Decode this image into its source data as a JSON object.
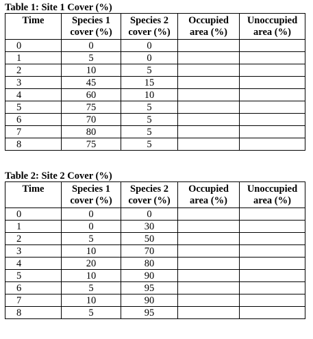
{
  "table1": {
    "caption": "Table 1: Site 1 Cover (%)",
    "headers": [
      [
        "Time",
        ""
      ],
      [
        "Species 1",
        "cover (%)"
      ],
      [
        "Species 2",
        "cover (%)"
      ],
      [
        "Occupied",
        "area (%)"
      ],
      [
        "Unoccupied",
        "area (%)"
      ]
    ],
    "rows": [
      [
        "0",
        "0",
        "0",
        "",
        ""
      ],
      [
        "1",
        "5",
        "0",
        "",
        ""
      ],
      [
        "2",
        "10",
        "5",
        "",
        ""
      ],
      [
        "3",
        "45",
        "15",
        "",
        ""
      ],
      [
        "4",
        "60",
        "10",
        "",
        ""
      ],
      [
        "5",
        "75",
        "5",
        "",
        ""
      ],
      [
        "6",
        "70",
        "5",
        "",
        ""
      ],
      [
        "7",
        "80",
        "5",
        "",
        ""
      ],
      [
        "8",
        "75",
        "5",
        "",
        ""
      ]
    ]
  },
  "table2": {
    "caption": "Table 2: Site 2 Cover (%)",
    "headers": [
      [
        "Time",
        ""
      ],
      [
        "Species 1",
        "cover (%)"
      ],
      [
        "Species 2",
        "cover (%)"
      ],
      [
        "Occupied",
        "area (%)"
      ],
      [
        "Unoccupied",
        "area (%)"
      ]
    ],
    "rows": [
      [
        "0",
        "0",
        "0",
        "",
        ""
      ],
      [
        "1",
        "0",
        "30",
        "",
        ""
      ],
      [
        "2",
        "5",
        "50",
        "",
        ""
      ],
      [
        "3",
        "10",
        "70",
        "",
        ""
      ],
      [
        "4",
        "20",
        "80",
        "",
        ""
      ],
      [
        "5",
        "10",
        "90",
        "",
        ""
      ],
      [
        "6",
        "5",
        "95",
        "",
        ""
      ],
      [
        "7",
        "10",
        "90",
        "",
        ""
      ],
      [
        "8",
        "5",
        "95",
        "",
        ""
      ]
    ]
  }
}
